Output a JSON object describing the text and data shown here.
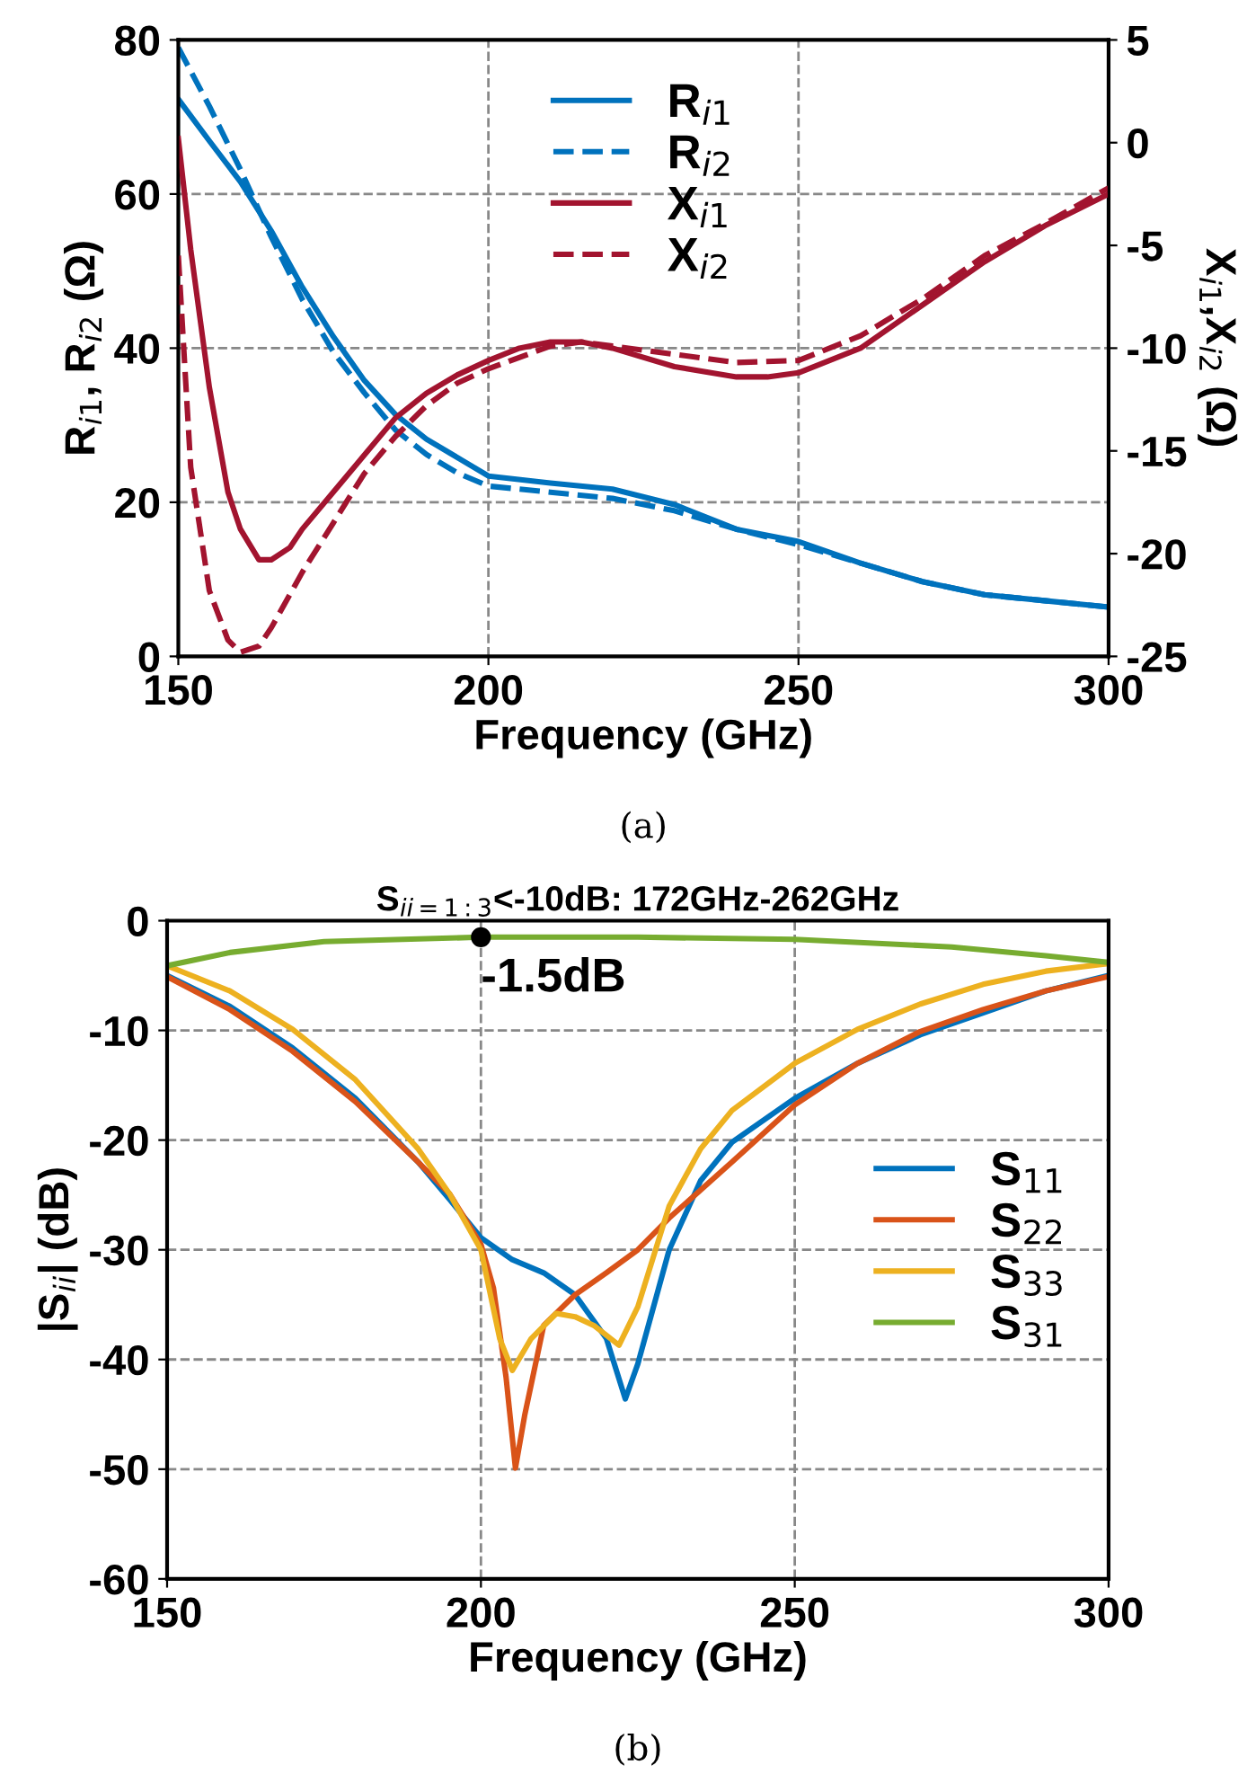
{
  "chart_data": [
    {
      "type": "line",
      "xlabel": "Frequency (GHz)",
      "ylabel": "R$_{i1}$, R$_{i2}$ (Ω)",
      "y2label": "X$_{i1}$,X$_{i2}$ (Ω)",
      "xlim": [
        150,
        300
      ],
      "xticks": [
        150,
        200,
        250,
        300
      ],
      "ylim": [
        0,
        80
      ],
      "yticks": [
        0,
        20,
        40,
        60,
        80
      ],
      "y2lim": [
        -25,
        5
      ],
      "y2ticks": [
        -25,
        -20,
        -15,
        -10,
        -5,
        0,
        5
      ],
      "grid": true,
      "legend": "top",
      "annotations": [
        "(a)"
      ],
      "series": [
        {
          "name": "R$_{i1}$",
          "color": "#0072bd",
          "line_style": "solid",
          "x": [
            150,
            155,
            160,
            165,
            170,
            175,
            180,
            185,
            190,
            195,
            200,
            210,
            220,
            230,
            240,
            250,
            260,
            270,
            280,
            290,
            300
          ],
          "values": [
            72.3,
            66.9,
            61.6,
            55.2,
            47.9,
            41.5,
            35.8,
            31.4,
            28.2,
            25.8,
            23.4,
            22.5,
            21.7,
            19.7,
            16.5,
            14.9,
            12.1,
            9.7,
            8.0,
            7.2,
            6.4
          ]
        },
        {
          "name": "R$_{i2}$",
          "color": "#0072bd",
          "line_style": "dashed",
          "x": [
            150,
            155,
            160,
            165,
            170,
            175,
            180,
            185,
            190,
            195,
            200,
            210,
            220,
            230,
            240,
            250,
            260,
            270,
            280,
            290,
            300
          ],
          "values": [
            79,
            71.4,
            63.2,
            54.4,
            46.3,
            39.5,
            34.2,
            29.4,
            26.2,
            23.8,
            22.1,
            21.3,
            20.5,
            18.9,
            16.5,
            14.5,
            12.1,
            9.7,
            8.0,
            7.2,
            6.4
          ]
        },
        {
          "name": "X$_{i1}$",
          "color": "#a2142f",
          "line_style": "solid",
          "axis": "y2",
          "x": [
            150,
            152,
            155,
            158,
            160,
            163,
            165,
            168,
            170,
            175,
            180,
            185,
            190,
            195,
            200,
            205,
            210,
            215,
            220,
            230,
            240,
            245,
            250,
            260,
            270,
            280,
            290,
            300
          ],
          "values": [
            0.2,
            -5.2,
            -11.9,
            -17,
            -18.8,
            -20.3,
            -20.3,
            -19.7,
            -18.8,
            -17,
            -15.2,
            -13.4,
            -12.2,
            -11.3,
            -10.6,
            -10,
            -9.7,
            -9.7,
            -10,
            -10.9,
            -11.4,
            -11.4,
            -11.2,
            -10,
            -7.9,
            -5.8,
            -4,
            -2.5
          ]
        },
        {
          "name": "X$_{i2}$",
          "color": "#a2142f",
          "line_style": "dashed",
          "axis": "y2",
          "x": [
            150,
            152,
            155,
            158,
            160,
            163,
            165,
            170,
            175,
            180,
            185,
            190,
            195,
            200,
            210,
            215,
            220,
            230,
            240,
            250,
            260,
            270,
            280,
            290,
            300
          ],
          "values": [
            -5.5,
            -15.8,
            -21.8,
            -24.2,
            -24.8,
            -24.5,
            -23.6,
            -20.9,
            -18.5,
            -16.1,
            -14.3,
            -12.8,
            -11.7,
            -11,
            -9.9,
            -9.7,
            -9.9,
            -10.3,
            -10.7,
            -10.6,
            -9.4,
            -7.6,
            -5.5,
            -3.9,
            -2.2
          ]
        }
      ]
    },
    {
      "type": "line",
      "title": "S$_{ii=1:3}$<-10dB: 172GHz-262GHz",
      "xlabel": "Frequency (GHz)",
      "ylabel": "|S$_{ii}$| (dB)",
      "xlim": [
        150,
        300
      ],
      "xticks": [
        150,
        200,
        250,
        300
      ],
      "ylim": [
        -60,
        0
      ],
      "yticks": [
        -60,
        -50,
        -40,
        -30,
        -20,
        -10,
        0
      ],
      "grid": true,
      "legend": "right",
      "annotations": [
        {
          "text": "-1.5dB",
          "x": 200,
          "y": -1.5
        },
        "(b)"
      ],
      "series": [
        {
          "name": "S$_{11}$",
          "color": "#0072bd",
          "x": [
            150,
            160,
            170,
            180,
            190,
            195,
            200,
            205,
            210,
            215,
            220,
            223,
            225,
            230,
            235,
            240,
            250,
            260,
            270,
            280,
            290,
            300
          ],
          "values": [
            -5,
            -7.8,
            -11.6,
            -16.2,
            -22,
            -25.4,
            -28.9,
            -30.9,
            -32.1,
            -34.1,
            -38.1,
            -43.6,
            -40.4,
            -30,
            -23.7,
            -20.2,
            -16.2,
            -13,
            -10.4,
            -8.4,
            -6.4,
            -5
          ]
        },
        {
          "name": "S$_{22}$",
          "color": "#d95319",
          "x": [
            150,
            160,
            170,
            180,
            190,
            195,
            200,
            202,
            204,
            205.5,
            207,
            210,
            215,
            220,
            225,
            230,
            240,
            250,
            260,
            270,
            280,
            290,
            300
          ],
          "values": [
            -5.1,
            -8.1,
            -11.9,
            -16.5,
            -22,
            -24.9,
            -29.5,
            -33.5,
            -41.6,
            -49.9,
            -45,
            -36.9,
            -34.1,
            -32.1,
            -30,
            -27.1,
            -22,
            -16.8,
            -13,
            -10.1,
            -8.1,
            -6.4,
            -5.1
          ]
        },
        {
          "name": "S$_{33}$",
          "color": "#edb120",
          "x": [
            150,
            160,
            170,
            180,
            190,
            195,
            200,
            203,
            205,
            208,
            212,
            215,
            218,
            222,
            225,
            230,
            235,
            240,
            250,
            260,
            270,
            280,
            290,
            300
          ],
          "values": [
            -4.1,
            -6.4,
            -9.9,
            -14.5,
            -20.8,
            -24.9,
            -30,
            -38.1,
            -41,
            -38.1,
            -35.8,
            -36.1,
            -36.9,
            -38.7,
            -35.2,
            -26,
            -20.8,
            -17.3,
            -13,
            -9.9,
            -7.6,
            -5.8,
            -4.6,
            -3.9
          ]
        },
        {
          "name": "S$_{31}$",
          "color": "#77ac30",
          "x": [
            150,
            160,
            175,
            200,
            225,
            250,
            275,
            290,
            300
          ],
          "values": [
            -4.1,
            -2.9,
            -1.9,
            -1.5,
            -1.5,
            -1.7,
            -2.4,
            -3.2,
            -3.8
          ]
        }
      ]
    }
  ]
}
